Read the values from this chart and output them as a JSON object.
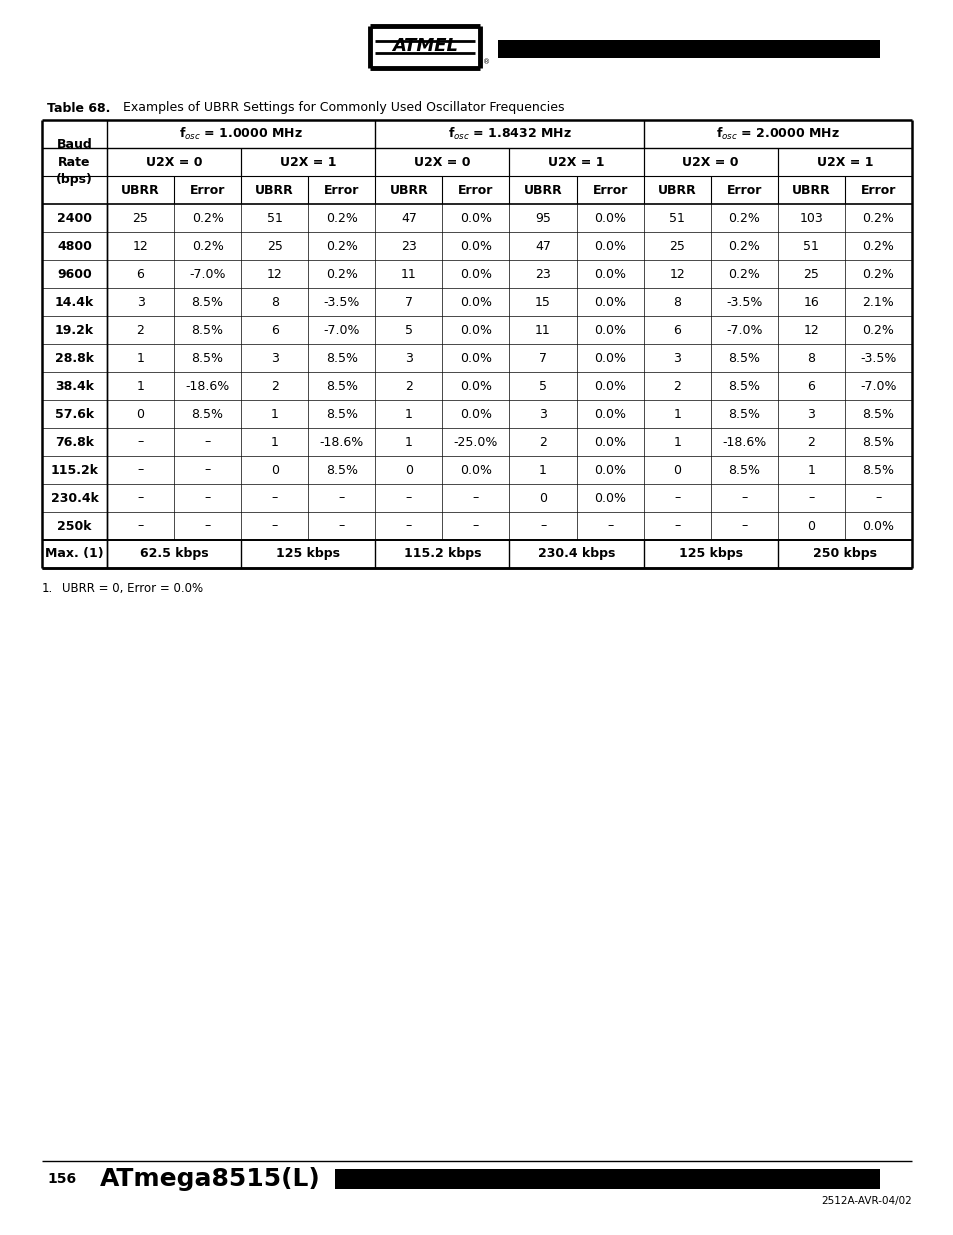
{
  "table_title_bold": "Table 68.",
  "table_title_rest": "  Examples of UBRR Settings for Commonly Used Oscillator Frequencies",
  "page_number": "156",
  "page_title": "ATmega8515(L)",
  "footer_text": "2512A-AVR-04/02",
  "footnote_num": "1.",
  "footnote_text": "        UBRR = 0, Error = 0.0%",
  "group_labels": [
    "f$_{osc}$ = 1.0000 MHz",
    "f$_{osc}$ = 1.8432 MHz",
    "f$_{osc}$ = 2.0000 MHz"
  ],
  "subgroup_labels": [
    "U2X = 0",
    "U2X = 1",
    "U2X = 0",
    "U2X = 1",
    "U2X = 0",
    "U2X = 1"
  ],
  "col_headers": [
    "UBRR",
    "Error",
    "UBRR",
    "Error",
    "UBRR",
    "Error",
    "UBRR",
    "Error",
    "UBRR",
    "Error",
    "UBRR",
    "Error"
  ],
  "rows": [
    [
      "2400",
      "25",
      "0.2%",
      "51",
      "0.2%",
      "47",
      "0.0%",
      "95",
      "0.0%",
      "51",
      "0.2%",
      "103",
      "0.2%"
    ],
    [
      "4800",
      "12",
      "0.2%",
      "25",
      "0.2%",
      "23",
      "0.0%",
      "47",
      "0.0%",
      "25",
      "0.2%",
      "51",
      "0.2%"
    ],
    [
      "9600",
      "6",
      "-7.0%",
      "12",
      "0.2%",
      "11",
      "0.0%",
      "23",
      "0.0%",
      "12",
      "0.2%",
      "25",
      "0.2%"
    ],
    [
      "14.4k",
      "3",
      "8.5%",
      "8",
      "-3.5%",
      "7",
      "0.0%",
      "15",
      "0.0%",
      "8",
      "-3.5%",
      "16",
      "2.1%"
    ],
    [
      "19.2k",
      "2",
      "8.5%",
      "6",
      "-7.0%",
      "5",
      "0.0%",
      "11",
      "0.0%",
      "6",
      "-7.0%",
      "12",
      "0.2%"
    ],
    [
      "28.8k",
      "1",
      "8.5%",
      "3",
      "8.5%",
      "3",
      "0.0%",
      "7",
      "0.0%",
      "3",
      "8.5%",
      "8",
      "-3.5%"
    ],
    [
      "38.4k",
      "1",
      "-18.6%",
      "2",
      "8.5%",
      "2",
      "0.0%",
      "5",
      "0.0%",
      "2",
      "8.5%",
      "6",
      "-7.0%"
    ],
    [
      "57.6k",
      "0",
      "8.5%",
      "1",
      "8.5%",
      "1",
      "0.0%",
      "3",
      "0.0%",
      "1",
      "8.5%",
      "3",
      "8.5%"
    ],
    [
      "76.8k",
      "–",
      "–",
      "1",
      "-18.6%",
      "1",
      "-25.0%",
      "2",
      "0.0%",
      "1",
      "-18.6%",
      "2",
      "8.5%"
    ],
    [
      "115.2k",
      "–",
      "–",
      "0",
      "8.5%",
      "0",
      "0.0%",
      "1",
      "0.0%",
      "0",
      "8.5%",
      "1",
      "8.5%"
    ],
    [
      "230.4k",
      "–",
      "–",
      "–",
      "–",
      "–",
      "–",
      "0",
      "0.0%",
      "–",
      "–",
      "–",
      "–"
    ],
    [
      "250k",
      "–",
      "–",
      "–",
      "–",
      "–",
      "–",
      "–",
      "–",
      "–",
      "–",
      "0",
      "0.0%"
    ]
  ],
  "max_row_label": "Max. (1)",
  "max_row_vals": [
    "62.5 kbps",
    "125 kbps",
    "115.2 kbps",
    "230.4 kbps",
    "125 kbps",
    "250 kbps"
  ],
  "bg_color": "#ffffff"
}
